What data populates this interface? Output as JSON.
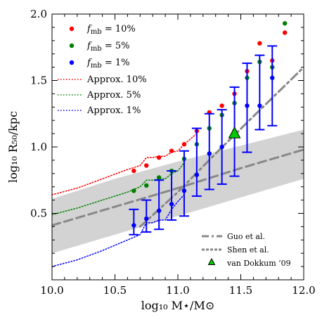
{
  "chart_data": {
    "type": "scatter",
    "xlabel": "log₁₀ M⋆/M⊙",
    "ylabel": "log₁₀ R₅₀/kpc",
    "xlim": [
      10.0,
      12.0
    ],
    "ylim": [
      0.0,
      2.0
    ],
    "xticks": [
      "10.0",
      "10.5",
      "11.0",
      "11.5",
      "12.0"
    ],
    "yticks": [
      "0.5",
      "1.0",
      "1.5",
      "2.0"
    ],
    "legend_position": "top-left",
    "series": [
      {
        "name": "f_mb = 10%",
        "label": "f",
        "subscript": "mb",
        "suffix": " = 10%",
        "color": "#ff0000",
        "kind": "points",
        "x": [
          10.65,
          10.75,
          10.85,
          10.95,
          11.05,
          11.15,
          11.25,
          11.35,
          11.45,
          11.55,
          11.65,
          11.75,
          11.85
        ],
        "y": [
          0.82,
          0.86,
          0.92,
          0.97,
          1.02,
          1.12,
          1.26,
          1.31,
          1.4,
          1.57,
          1.78,
          1.65,
          1.86
        ]
      },
      {
        "name": "f_mb = 5%",
        "label": "f",
        "subscript": "mb",
        "suffix": " = 5%",
        "color": "#008000",
        "kind": "points",
        "x": [
          10.65,
          10.75,
          10.85,
          10.95,
          11.05,
          11.15,
          11.25,
          11.35,
          11.45,
          11.55,
          11.65,
          11.75,
          11.85
        ],
        "y": [
          0.67,
          0.71,
          0.77,
          0.82,
          0.91,
          1.02,
          1.14,
          1.24,
          1.33,
          1.52,
          1.64,
          1.6,
          1.93
        ]
      },
      {
        "name": "f_mb = 1%",
        "label": "f",
        "subscript": "mb",
        "suffix": " = 1%",
        "color": "#0000ff",
        "kind": "errorbar",
        "x": [
          10.65,
          10.75,
          10.85,
          10.95,
          11.05,
          11.15,
          11.25,
          11.35,
          11.45,
          11.55,
          11.65,
          11.75
        ],
        "y": [
          0.41,
          0.46,
          0.52,
          0.57,
          0.67,
          0.79,
          0.95,
          1.0,
          1.12,
          1.31,
          1.31,
          1.52
        ],
        "yerr_low": [
          0.07,
          0.1,
          0.14,
          0.12,
          0.19,
          0.16,
          0.27,
          0.28,
          0.34,
          0.35,
          0.18,
          0.36
        ],
        "yerr_high": [
          0.12,
          0.14,
          0.23,
          0.25,
          0.3,
          0.35,
          0.3,
          0.28,
          0.33,
          0.32,
          0.38,
          0.24
        ]
      },
      {
        "name": "Approx. 10%",
        "color": "#ff0000",
        "kind": "dotted",
        "x": [
          10.0,
          10.2,
          10.4,
          10.6,
          10.7,
          10.75,
          10.8,
          10.85,
          10.9,
          10.95,
          11.0,
          11.05,
          11.15
        ],
        "y": [
          0.64,
          0.69,
          0.76,
          0.83,
          0.86,
          0.92,
          0.92,
          0.93,
          0.93,
          0.96,
          0.97,
          1.02,
          1.1
        ]
      },
      {
        "name": "Approx. 5%",
        "color": "#008000",
        "kind": "dotted",
        "x": [
          10.0,
          10.2,
          10.4,
          10.6,
          10.7,
          10.75,
          10.8,
          10.85,
          10.9,
          10.95,
          11.0,
          11.05
        ],
        "y": [
          0.49,
          0.54,
          0.6,
          0.66,
          0.7,
          0.75,
          0.75,
          0.76,
          0.76,
          0.8,
          0.82,
          0.88
        ]
      },
      {
        "name": "Approx. 1%",
        "color": "#0000ff",
        "kind": "dotted",
        "x": [
          10.0,
          10.2,
          10.4,
          10.6,
          10.7,
          10.75,
          10.8,
          10.85,
          10.9,
          10.95,
          11.0,
          11.05
        ],
        "y": [
          0.1,
          0.15,
          0.22,
          0.3,
          0.34,
          0.43,
          0.43,
          0.45,
          0.45,
          0.53,
          0.59,
          0.64
        ]
      },
      {
        "name": "Guo et al.",
        "color": "#888888",
        "kind": "dashdot",
        "x": [
          10.7,
          11.0,
          11.3,
          11.6,
          12.0
        ],
        "y": [
          0.4,
          0.66,
          0.95,
          1.23,
          1.6
        ]
      },
      {
        "name": "Shen et al.",
        "color": "#888888",
        "kind": "dashed",
        "x": [
          10.0,
          10.5,
          11.0,
          11.5,
          12.0
        ],
        "y": [
          0.41,
          0.55,
          0.69,
          0.84,
          0.98
        ]
      },
      {
        "name": "van Dokkum ‘09",
        "color": "#00cc00",
        "kind": "triangle",
        "x": [
          11.45
        ],
        "y": [
          1.1
        ]
      }
    ],
    "band": {
      "color": "#d3d3d3",
      "x": [
        10.0,
        10.5,
        11.0,
        11.5,
        12.0
      ],
      "upper": [
        0.61,
        0.76,
        0.89,
        1.01,
        1.13
      ],
      "lower": [
        0.2,
        0.34,
        0.48,
        0.62,
        0.76
      ]
    }
  }
}
